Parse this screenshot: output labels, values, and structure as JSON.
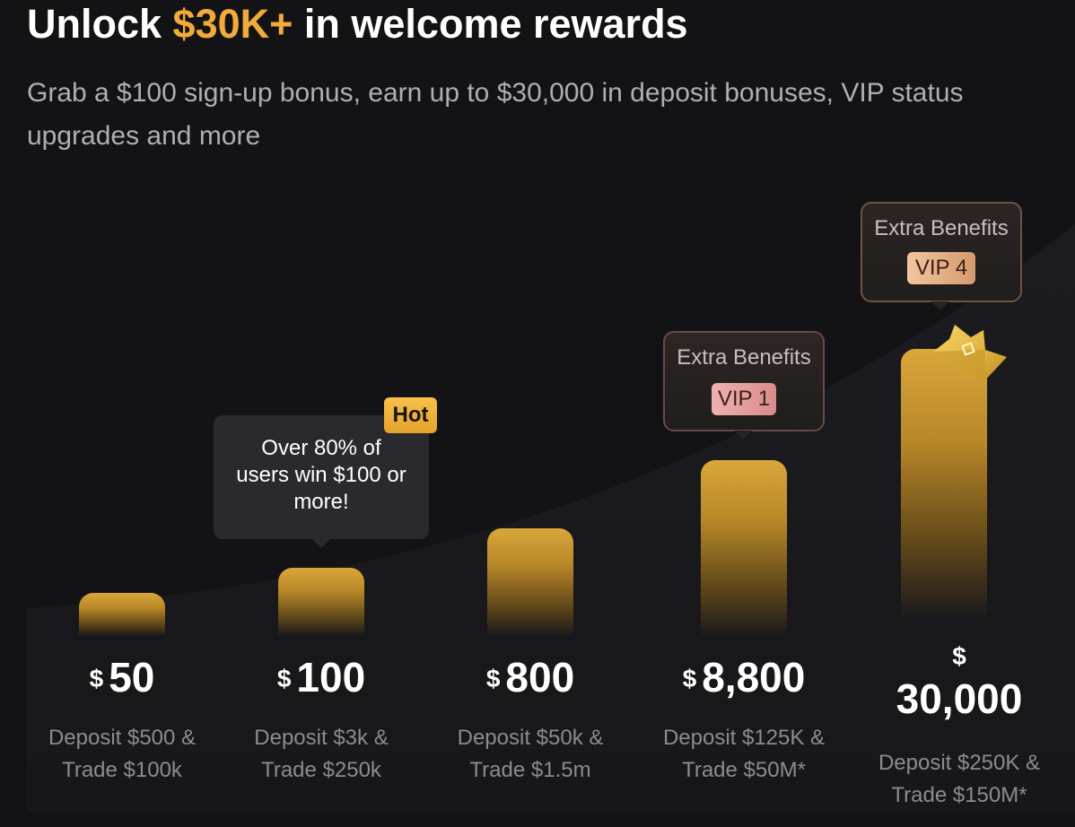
{
  "header": {
    "title_prefix": "Unlock ",
    "title_accent": "$30K+",
    "title_suffix": " in welcome rewards",
    "subtitle": "Grab a $100 sign-up bonus, earn up to $30,000 in deposit bonuses, VIP status upgrades and more"
  },
  "tiers": [
    {
      "currency": "$",
      "amount": "50",
      "desc_line1": "Deposit $500 &",
      "desc_line2": "Trade $100k"
    },
    {
      "currency": "$",
      "amount": "100",
      "desc_line1": "Deposit $3k &",
      "desc_line2": "Trade $250k"
    },
    {
      "currency": "$",
      "amount": "800",
      "desc_line1": "Deposit $50k &",
      "desc_line2": "Trade $1.5m"
    },
    {
      "currency": "$",
      "amount": "8,800",
      "desc_line1": "Deposit $125K &",
      "desc_line2": "Trade $50M*"
    },
    {
      "currency": "$",
      "amount": "30,000",
      "desc_line1": "Deposit $250K &",
      "desc_line2": "Trade $150M*"
    }
  ],
  "tooltip": {
    "text_line1": "Over 80% of",
    "text_line2": "users win $100 or",
    "text_line3": "more!",
    "badge": "Hot"
  },
  "benefits": [
    {
      "title": "Extra Benefits",
      "vip": "VIP 1"
    },
    {
      "title": "Extra Benefits",
      "vip": "VIP 4"
    }
  ],
  "icons": {
    "crown": "crown-icon"
  },
  "colors": {
    "background": "#131316",
    "accent": "#f0ab3a",
    "bar_gold": "#d9a73a",
    "hot_badge": "#f7c04a",
    "vip1_badge": "#e8a3a3",
    "vip4_badge": "#e8b48e"
  }
}
